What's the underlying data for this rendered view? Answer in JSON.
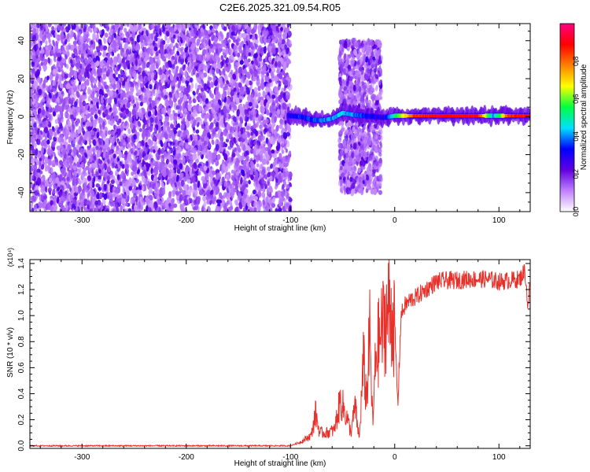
{
  "title": "C2E6.2025.321.09.54.R05",
  "chart_data": [
    {
      "type": "heatmap",
      "title": "C2E6.2025.321.09.54.R05",
      "xlabel": "Height of straight line (km)",
      "ylabel": "Frequency (Hz)",
      "xlim": [
        -350,
        130
      ],
      "ylim": [
        -50,
        49
      ],
      "xticks": [
        -300,
        -200,
        -100,
        0,
        100
      ],
      "xtick_labels": [
        "-300",
        "-200",
        "-100",
        "0",
        "100"
      ],
      "yticks": [
        -40,
        -20,
        0,
        20,
        40
      ],
      "ytick_labels": [
        "-40",
        "-20",
        "0",
        "20",
        "40"
      ],
      "colorbar": {
        "label": "Normalized spectral amplitude",
        "range": [
          0,
          1
        ],
        "ticks": [
          0.0,
          0.2,
          0.4,
          0.6,
          0.8
        ],
        "tick_labels": [
          "0.0",
          "0.2",
          "0.4",
          "0.6",
          "0.8"
        ],
        "colormap": [
          "#ffffff",
          "#c080ff",
          "#6000e0",
          "#0000ff",
          "#00e0ff",
          "#00ff40",
          "#ffff00",
          "#ff8000",
          "#ff0000",
          "#ff0080"
        ]
      },
      "regions": [
        {
          "name": "broadband noise",
          "x_range": [
            -350,
            -100
          ],
          "freq_range": [
            -50,
            49
          ],
          "amplitude": 0.15
        },
        {
          "name": "noise burst",
          "x_range": [
            -53,
            -13
          ],
          "freq_range": [
            -40,
            40
          ],
          "amplitude": 0.15
        }
      ],
      "trace": {
        "x": [
          -102,
          -90,
          -80,
          -70,
          -60,
          -50,
          -40,
          -30,
          -20,
          -10,
          0,
          20,
          40,
          60,
          80,
          95,
          110,
          130
        ],
        "freq": [
          0.5,
          0.0,
          -1.5,
          -2.0,
          -1.0,
          2.0,
          1.0,
          0.5,
          0.0,
          -0.5,
          0.5,
          0.5,
          0.5,
          0.5,
          0.5,
          0.5,
          0.5,
          0.5
        ],
        "amplitude": [
          0.3,
          0.35,
          0.35,
          0.4,
          0.4,
          0.45,
          0.4,
          0.35,
          0.3,
          0.3,
          0.5,
          0.85,
          0.9,
          0.9,
          0.9,
          0.4,
          0.85,
          0.9
        ]
      }
    },
    {
      "type": "line",
      "xlabel": "Height of straight line (km)",
      "ylabel": "SNR (10 * v/v)",
      "y_multiplier": "(x10⁴)",
      "xlim": [
        -350,
        130
      ],
      "ylim": [
        -0.02,
        1.43
      ],
      "xticks": [
        -300,
        -200,
        -100,
        0,
        100
      ],
      "xtick_labels": [
        "-300",
        "-200",
        "-100",
        "0",
        "100"
      ],
      "yticks": [
        0.0,
        0.2,
        0.4,
        0.6,
        0.8,
        1.0,
        1.2,
        1.4
      ],
      "ytick_labels": [
        "0.0",
        "0.2",
        "0.4",
        "0.6",
        "0.8",
        "1.0",
        "1.2",
        "1.4"
      ],
      "color": "#e8302a",
      "series": [
        {
          "name": "SNR",
          "x": [
            -350,
            -100,
            -90,
            -80,
            -76,
            -72,
            -65,
            -58,
            -52,
            -46,
            -42,
            -38,
            -34,
            -30,
            -27,
            -24,
            -21,
            -18,
            -15,
            -10,
            -5,
            0,
            3,
            6,
            10,
            15,
            20,
            30,
            40,
            50,
            60,
            70,
            80,
            90,
            100,
            110,
            120,
            125,
            128,
            130
          ],
          "y": [
            0.0,
            0.0,
            0.03,
            0.08,
            0.25,
            0.1,
            0.1,
            0.12,
            0.35,
            0.22,
            0.1,
            0.3,
            0.05,
            0.65,
            0.35,
            0.85,
            0.15,
            0.72,
            0.8,
            0.95,
            1.05,
            0.92,
            0.3,
            1.0,
            1.08,
            1.12,
            1.14,
            1.2,
            1.26,
            1.27,
            1.27,
            1.28,
            1.28,
            1.28,
            1.26,
            1.27,
            1.28,
            1.35,
            1.05,
            1.28
          ],
          "noise_floor": 0.005
        }
      ]
    }
  ]
}
